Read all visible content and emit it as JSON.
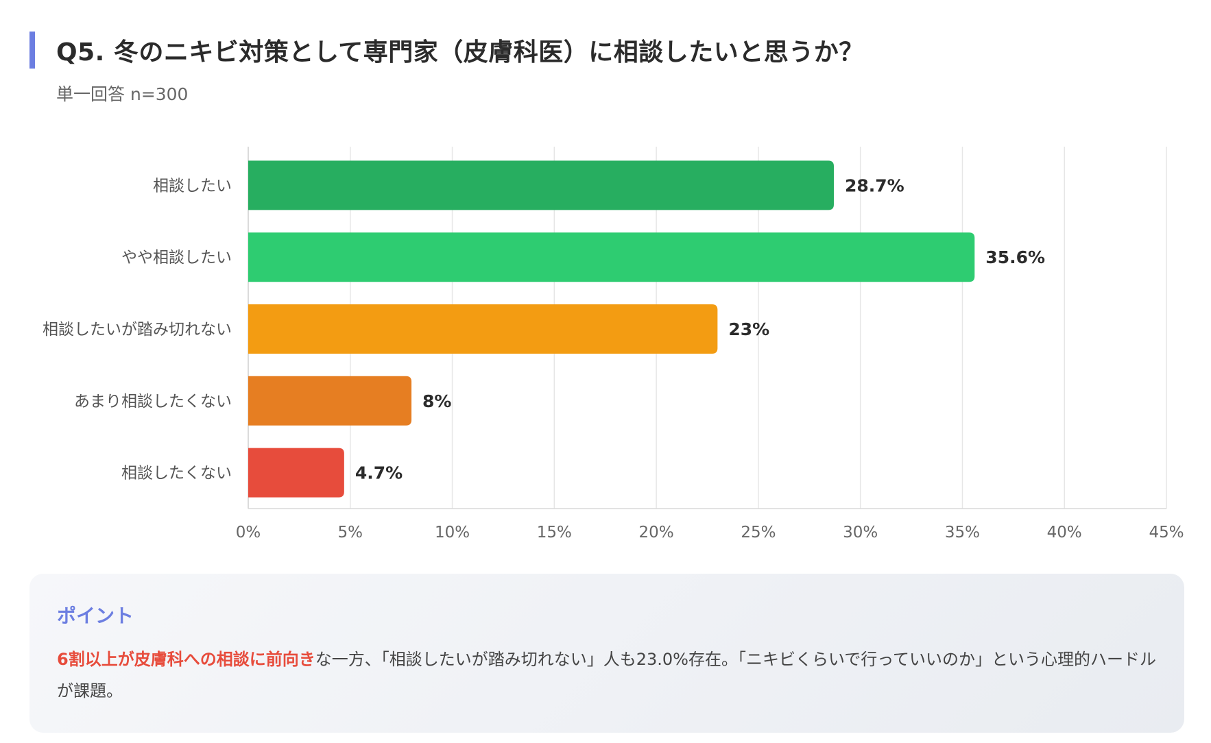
{
  "header": {
    "title": "Q5. 冬のニキビ対策として専門家（皮膚科医）に相談したいと思うか？",
    "subtitle": "単一回答 n=300"
  },
  "chart_data": {
    "type": "bar",
    "orientation": "horizontal",
    "categories": [
      "相談したい",
      "やや相談したい",
      "相談したいが踏み切れない",
      "あまり相談したくない",
      "相談したくない"
    ],
    "values": [
      28.7,
      35.6,
      23,
      8,
      4.7
    ],
    "value_labels": [
      "28.7%",
      "35.6%",
      "23%",
      "8%",
      "4.7%"
    ],
    "colors": [
      "#27ae60",
      "#2ecc71",
      "#f39c12",
      "#e67e22",
      "#e74c3c"
    ],
    "xlim": [
      0,
      45
    ],
    "x_ticks": [
      0,
      5,
      10,
      15,
      20,
      25,
      30,
      35,
      40,
      45
    ],
    "x_tick_labels": [
      "0%",
      "5%",
      "10%",
      "15%",
      "20%",
      "25%",
      "30%",
      "35%",
      "40%",
      "45%"
    ],
    "grid": true,
    "title": "",
    "xlabel": "",
    "ylabel": ""
  },
  "point": {
    "title": "ポイント",
    "highlight": "6割以上が皮膚科への相談に前向き",
    "body": "な一方、「相談したいが踏み切れない」人も23.0%存在。「ニキビくらいで行っていいのか」という心理的ハードルが課題。",
    "highlight_color": "#e74c3c",
    "accent_color": "#6c7ee1"
  }
}
